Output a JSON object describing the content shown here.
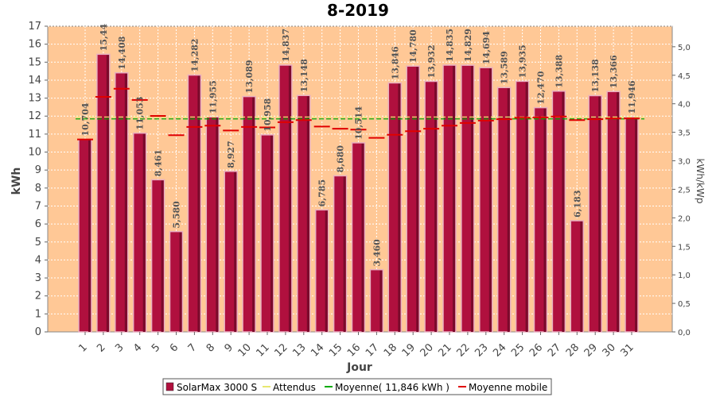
{
  "chart_data": {
    "type": "bar",
    "title": "8-2019",
    "xlabel": "Jour",
    "ylabel": "kWh",
    "ylabel_right": "kWh/kWp",
    "ylim": [
      0,
      17
    ],
    "ylim_right": [
      0,
      5.36
    ],
    "categories": [
      "1",
      "2",
      "3",
      "4",
      "5",
      "6",
      "7",
      "8",
      "9",
      "10",
      "11",
      "12",
      "13",
      "14",
      "15",
      "16",
      "17",
      "18",
      "19",
      "20",
      "21",
      "22",
      "23",
      "24",
      "25",
      "26",
      "27",
      "28",
      "29",
      "30",
      "31"
    ],
    "y_ticks": [
      "0",
      "1",
      "2",
      "3",
      "4",
      "5",
      "6",
      "7",
      "8",
      "9",
      "10",
      "11",
      "12",
      "13",
      "14",
      "15",
      "16",
      "17"
    ],
    "y_ticks_right": [
      "0,0",
      "0,5",
      "1,0",
      "1,5",
      "2,0",
      "2,5",
      "3,0",
      "3,5",
      "4,0",
      "4,5",
      "5,0"
    ],
    "series": [
      {
        "name": "SolarMax 3000 S",
        "type": "bar",
        "color": "#b0103e",
        "values": [
          10.704,
          15.44,
          14.408,
          11.053,
          8.461,
          5.58,
          14.282,
          11.955,
          8.927,
          13.089,
          10.958,
          14.837,
          13.148,
          6.785,
          8.68,
          10.514,
          3.46,
          13.846,
          14.78,
          13.932,
          14.835,
          14.829,
          14.694,
          13.589,
          13.935,
          12.47,
          13.388,
          6.183,
          13.138,
          13.366,
          11.946
        ],
        "labels": [
          "10,704",
          "15,44",
          "14,408",
          "11,053",
          "8,461",
          "5,580",
          "14,282",
          "11,955",
          "8,927",
          "13,089",
          "10,958",
          "14,837",
          "13,148",
          "6,785",
          "8,680",
          "10,514",
          "3,460",
          "13,846",
          "14,780",
          "13,932",
          "14,835",
          "14,829",
          "14,694",
          "13,589",
          "13,935",
          "12,470",
          "13,388",
          "6,183",
          "13,138",
          "13,366",
          "11,946"
        ]
      },
      {
        "name": "Attendus",
        "type": "line",
        "color": "#e8e870",
        "value": 11.95
      },
      {
        "name": "Moyenne( 11,846 kWh )",
        "type": "line",
        "color": "#00aa00",
        "value": 11.846
      },
      {
        "name": "Moyenne mobile",
        "type": "step",
        "color": "#e00000",
        "values": [
          10.7,
          13.07,
          13.52,
          12.9,
          12.01,
          10.94,
          11.4,
          11.47,
          11.2,
          11.4,
          11.37,
          11.66,
          11.78,
          11.42,
          11.3,
          11.25,
          10.79,
          10.96,
          11.16,
          11.3,
          11.47,
          11.62,
          11.75,
          11.83,
          11.91,
          11.93,
          11.98,
          11.78,
          11.83,
          11.87,
          11.87
        ]
      }
    ],
    "legend_position": "bottom",
    "grid": true,
    "plot_background": "#ffc896"
  }
}
